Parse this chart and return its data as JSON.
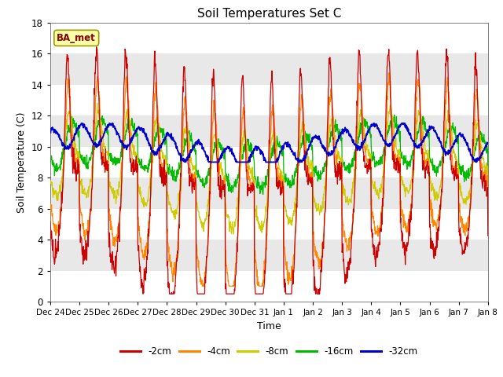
{
  "title": "Soil Temperatures Set C",
  "xlabel": "Time",
  "ylabel": "Soil Temperature (C)",
  "ylim": [
    0,
    18
  ],
  "annotation": "BA_met",
  "legend_labels": [
    "-2cm",
    "-4cm",
    "-8cm",
    "-16cm",
    "-32cm"
  ],
  "legend_colors": [
    "#cc0000",
    "#ff8800",
    "#cccc00",
    "#00bb00",
    "#0000cc"
  ],
  "bg_color": "#e8e8e8",
  "stripe_color": "#f5f5f5",
  "tick_labels": [
    "Dec 24",
    "Dec 25",
    "Dec 26",
    "Dec 27",
    "Dec 28",
    "Dec 29",
    "Dec 30",
    "Dec 31",
    "Jan 1",
    "Jan 2",
    "Jan 3",
    "Jan 4",
    "Jan 5",
    "Jan 6",
    "Jan 7",
    "Jan 8"
  ],
  "tick_positions": [
    0,
    24,
    48,
    72,
    96,
    120,
    144,
    168,
    192,
    216,
    240,
    264,
    288,
    312,
    336,
    360
  ],
  "yticks": [
    0,
    2,
    4,
    6,
    8,
    10,
    12,
    14,
    16,
    18
  ]
}
